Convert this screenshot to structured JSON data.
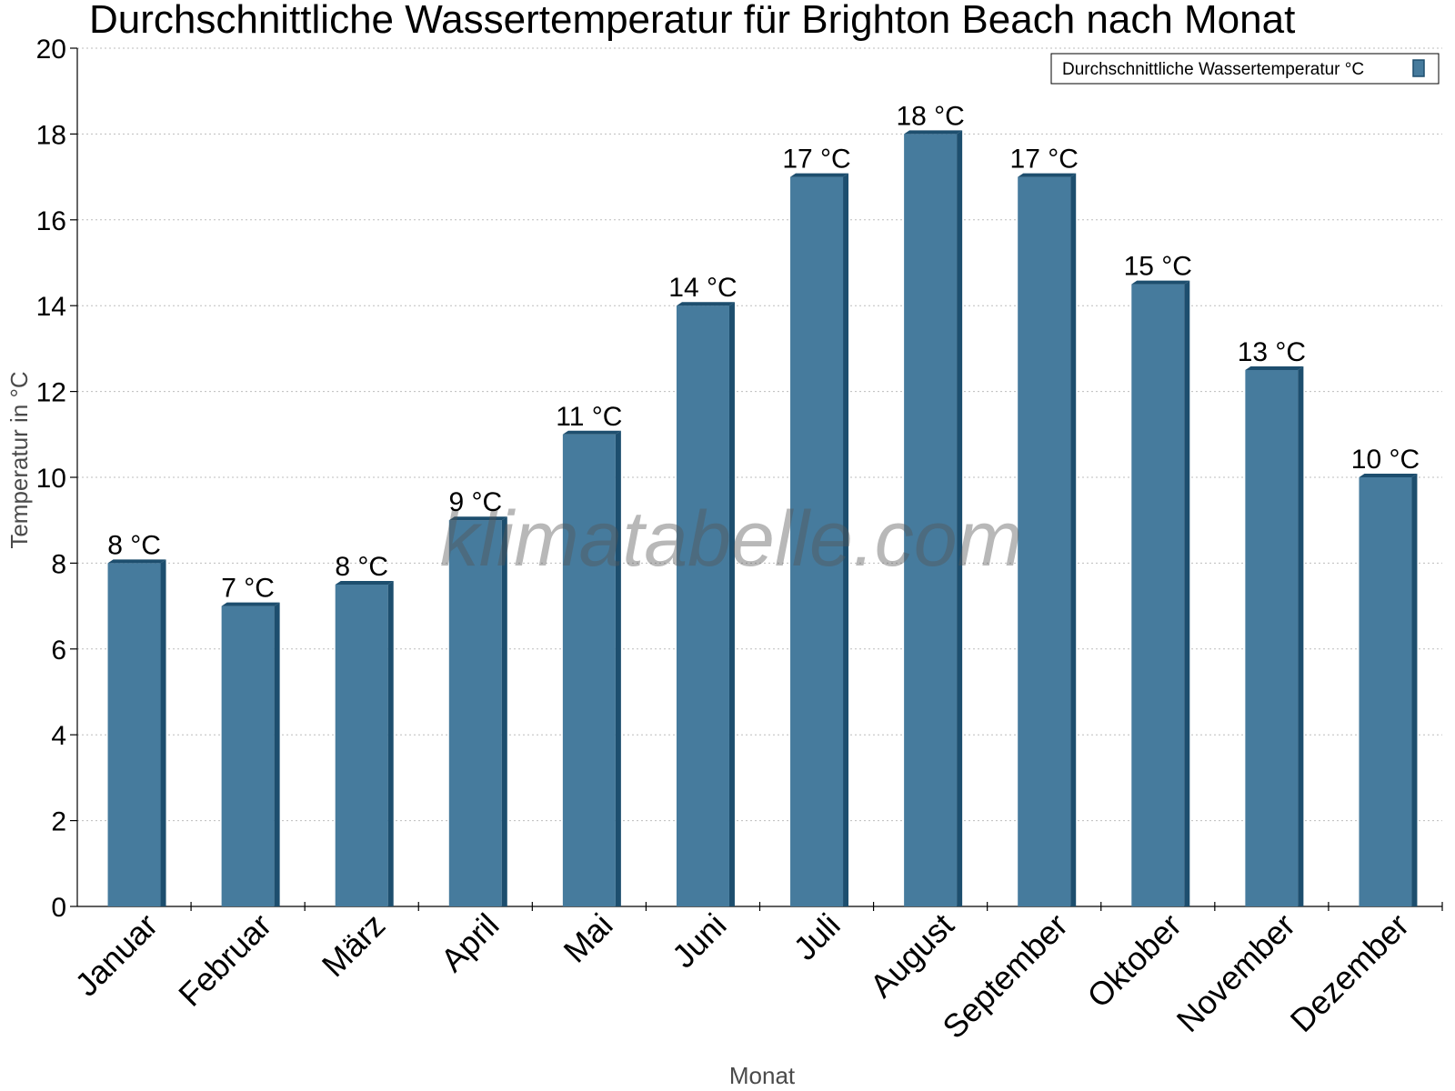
{
  "chart_data": {
    "type": "bar",
    "title": "Durchschnittliche Wassertemperatur für Brighton Beach nach Monat",
    "xlabel": "Monat",
    "ylabel": "Temperatur in °C",
    "categories": [
      "Januar",
      "Februar",
      "März",
      "April",
      "Mai",
      "Juni",
      "Juli",
      "August",
      "September",
      "Oktober",
      "November",
      "Dezember"
    ],
    "series": [
      {
        "name": "Durchschnittliche Wassertemperatur °C",
        "values": [
          8,
          7,
          7.5,
          9,
          11,
          14,
          17,
          18,
          17,
          14.5,
          12.5,
          10
        ],
        "data_labels": [
          "8 °C",
          "7 °C",
          "8 °C",
          "9 °C",
          "11 °C",
          "14 °C",
          "17 °C",
          "18 °C",
          "17 °C",
          "15 °C",
          "13 °C",
          "10 °C"
        ],
        "color": "#467b9d",
        "side_color": "#1d4e6e"
      }
    ],
    "ylim": [
      0,
      20
    ],
    "yticks": [
      0,
      2,
      4,
      6,
      8,
      10,
      12,
      14,
      16,
      18,
      20
    ],
    "grid": true,
    "legend_position": "top-right",
    "watermark": "klimatabelle.com"
  }
}
